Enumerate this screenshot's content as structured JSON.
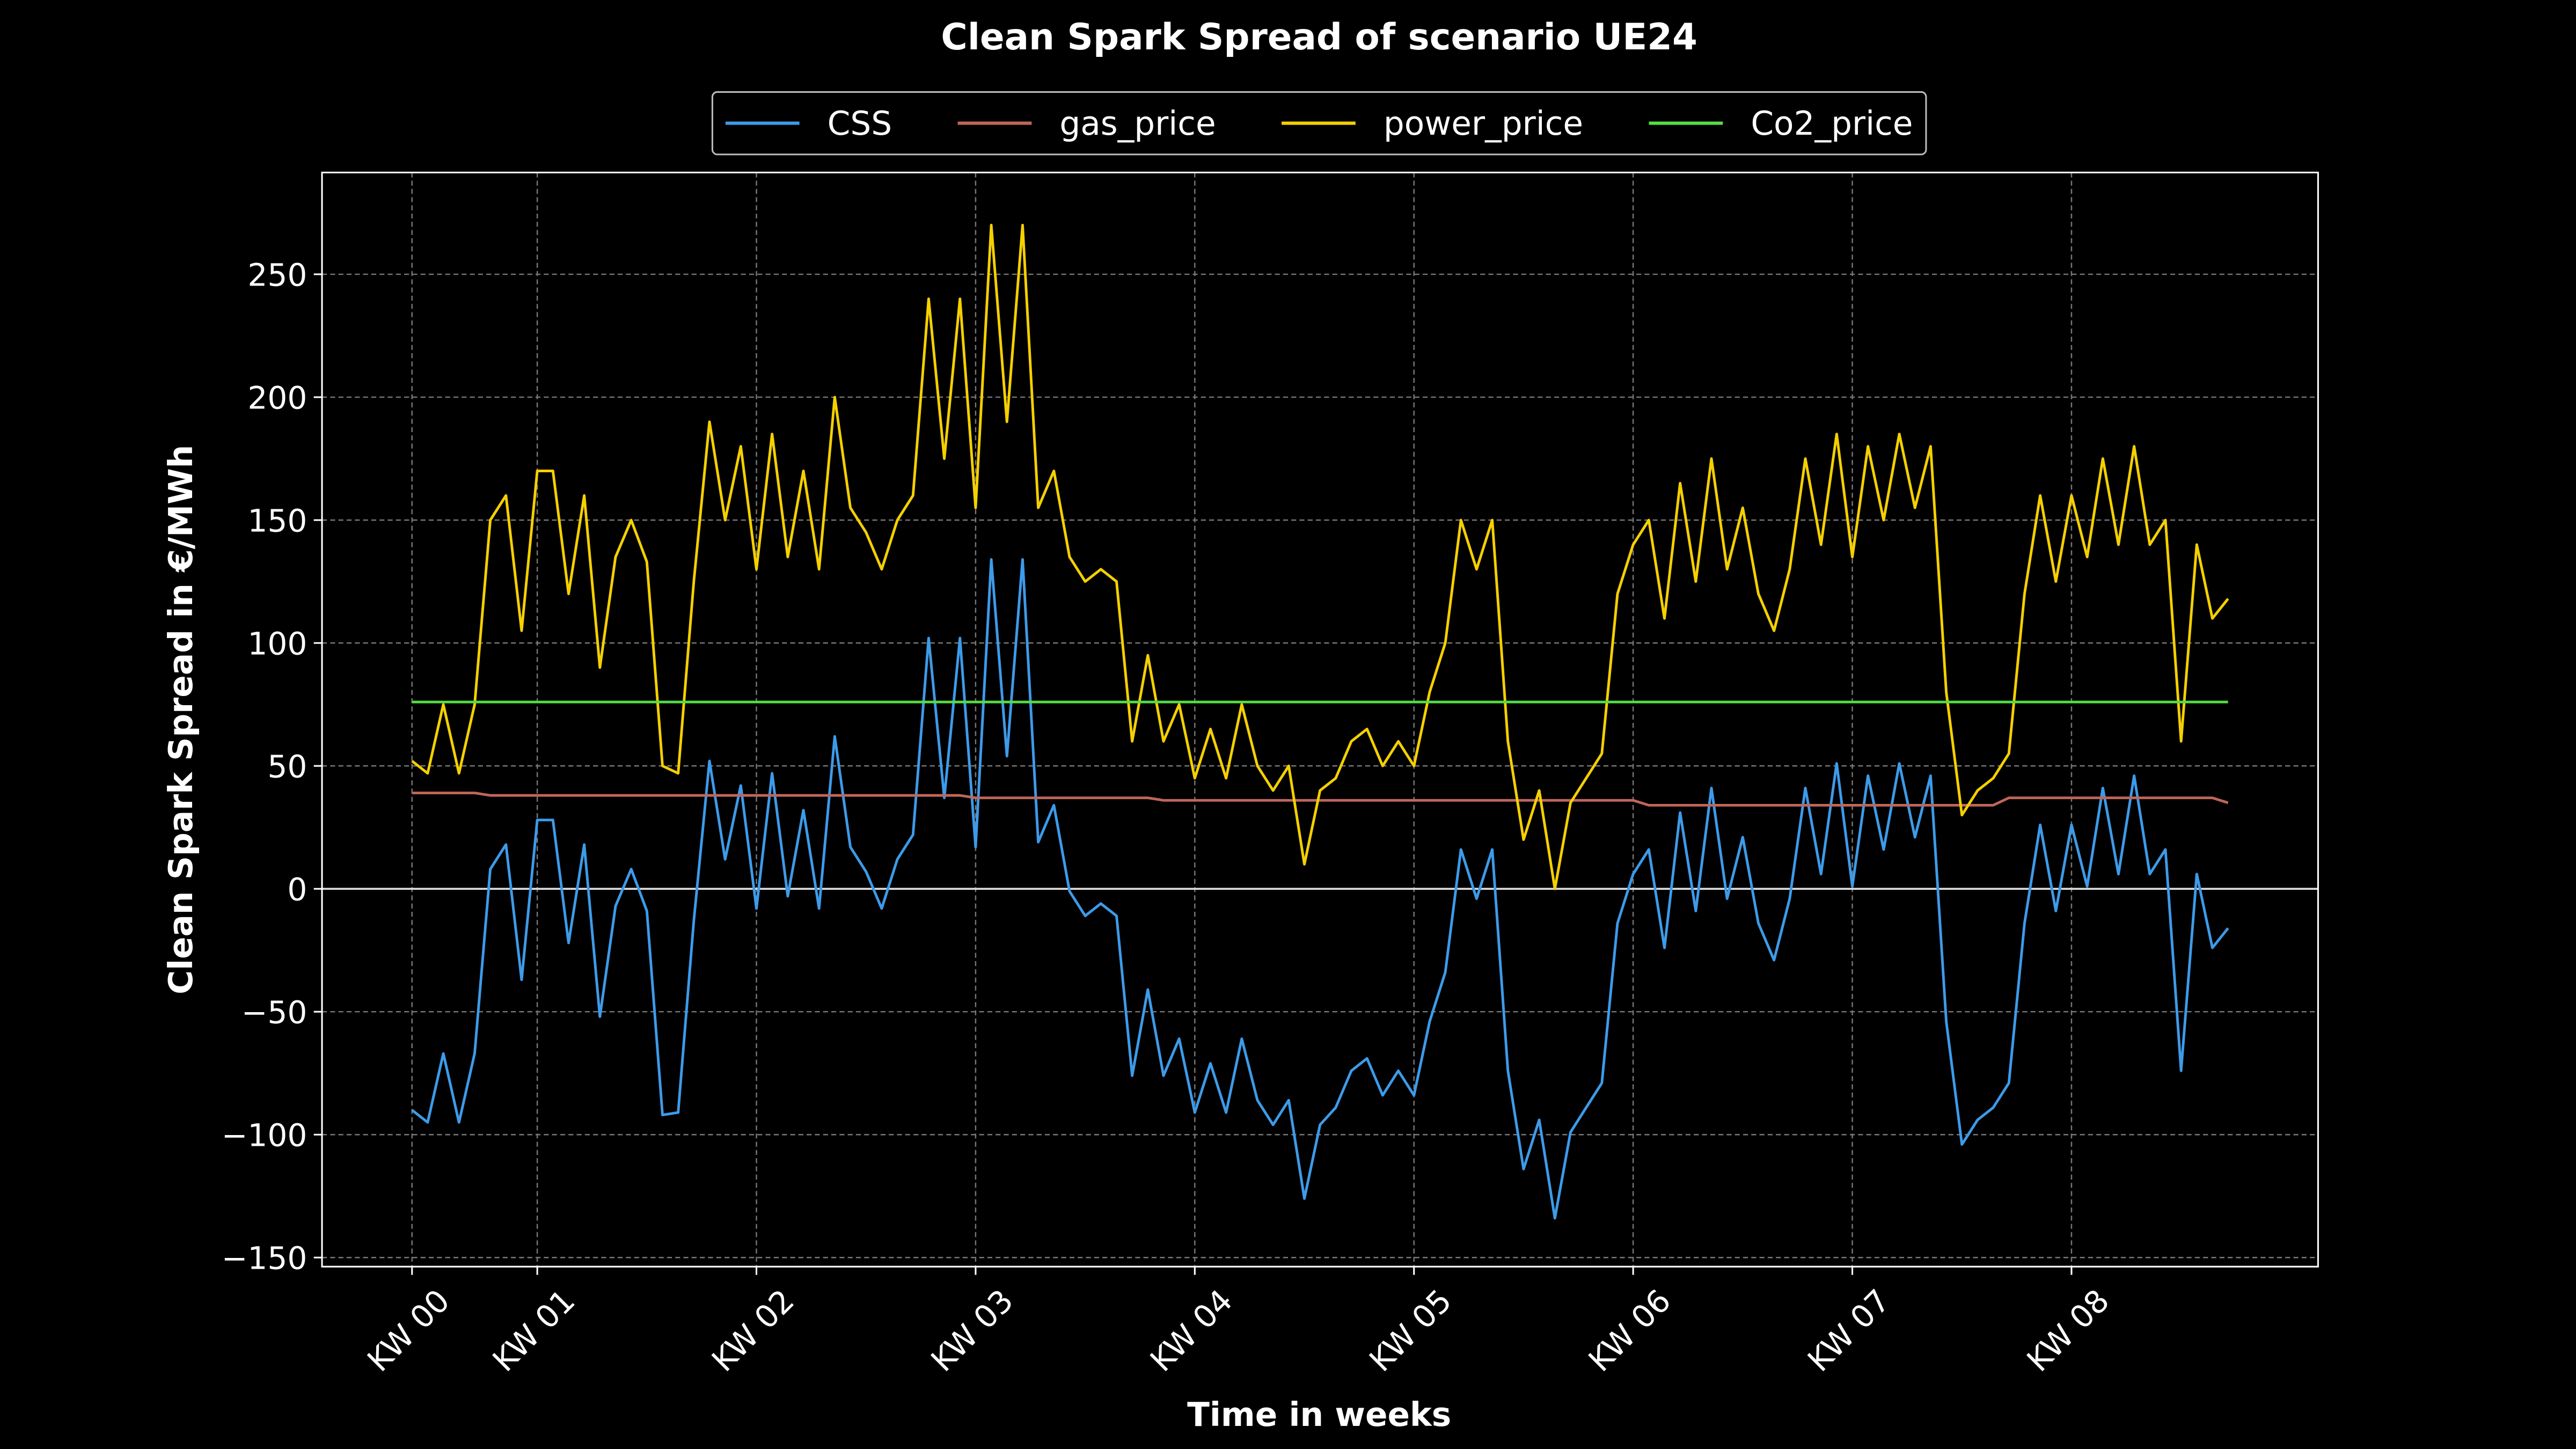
{
  "chart_data": {
    "type": "line",
    "title": "Clean Spark Spread of scenario UE24",
    "x_label": "Time in weeks",
    "y_label": "Clean Spark Spread in €/MWh",
    "legend": "upper center",
    "grid": true,
    "hlines": [
      0
    ],
    "xlim": [
      -69,
      1461
    ],
    "ylim": [
      -153.7,
      291.4
    ],
    "xticks": [
      {
        "value": 0,
        "label": "KW 00"
      },
      {
        "value": 96,
        "label": "KW 01"
      },
      {
        "value": 264,
        "label": "KW 02"
      },
      {
        "value": 432,
        "label": "KW 03"
      },
      {
        "value": 600,
        "label": "KW 04"
      },
      {
        "value": 768,
        "label": "KW 05"
      },
      {
        "value": 936,
        "label": "KW 06"
      },
      {
        "value": 1104,
        "label": "KW 07"
      },
      {
        "value": 1272,
        "label": "KW 08"
      }
    ],
    "yticks": [
      {
        "value": -150,
        "label": "−150"
      },
      {
        "value": -100,
        "label": "−100"
      },
      {
        "value": -50,
        "label": "−50"
      },
      0,
      50,
      100,
      150,
      200,
      250
    ],
    "x": [
      0,
      12,
      24,
      36,
      48,
      60,
      72,
      84,
      96,
      108,
      120,
      132,
      144,
      156,
      168,
      180,
      192,
      204,
      216,
      228,
      240,
      252,
      264,
      276,
      288,
      300,
      312,
      324,
      336,
      348,
      360,
      372,
      384,
      396,
      408,
      420,
      432,
      444,
      456,
      468,
      480,
      492,
      504,
      516,
      528,
      540,
      552,
      564,
      576,
      588,
      600,
      612,
      624,
      636,
      648,
      660,
      672,
      684,
      696,
      708,
      720,
      732,
      744,
      756,
      768,
      780,
      792,
      804,
      816,
      828,
      840,
      852,
      864,
      876,
      888,
      900,
      912,
      924,
      936,
      948,
      960,
      972,
      984,
      996,
      1008,
      1020,
      1032,
      1044,
      1056,
      1068,
      1080,
      1092,
      1104,
      1116,
      1128,
      1140,
      1152,
      1164,
      1176,
      1188,
      1200,
      1212,
      1224,
      1236,
      1248,
      1260,
      1272,
      1284,
      1296,
      1308,
      1320,
      1332,
      1344,
      1356,
      1368,
      1380,
      1392
    ],
    "series": [
      {
        "name": "CSS",
        "color": "#3d9be9",
        "values": [
          -90,
          -95,
          -67,
          -95,
          -67,
          8,
          18,
          -37,
          28,
          28,
          -22,
          18,
          -52,
          -7,
          8,
          -9,
          -92,
          -91,
          -13,
          52,
          12,
          42,
          -8,
          47,
          -3,
          32,
          -8,
          62,
          17,
          7,
          -8,
          12,
          22,
          102,
          37,
          102,
          17,
          134,
          54,
          134,
          19,
          34,
          -1,
          -11,
          -6,
          -11,
          -76,
          -41,
          -76,
          -61,
          -91,
          -71,
          -91,
          -61,
          -86,
          -96,
          -86,
          -126,
          -96,
          -89,
          -74,
          -69,
          -84,
          -74,
          -84,
          -54,
          -34,
          16,
          -4,
          16,
          -74,
          -114,
          -94,
          -134,
          -99,
          -89,
          -79,
          -14,
          6,
          16,
          -24,
          31,
          -9,
          41,
          -4,
          21,
          -14,
          -29,
          -4,
          41,
          6,
          51,
          1,
          46,
          16,
          51,
          21,
          46,
          -54,
          -104,
          -94,
          -89,
          -79,
          -14,
          26,
          -9,
          26,
          1,
          41,
          6,
          46,
          6,
          16,
          -74,
          6,
          -24,
          -16
        ]
      },
      {
        "name": "gas_price",
        "color": "#c0665a",
        "values": [
          39,
          39,
          39,
          39,
          39,
          38,
          38,
          38,
          38,
          38,
          38,
          38,
          38,
          38,
          38,
          38,
          38,
          38,
          38,
          38,
          38,
          38,
          38,
          38,
          38,
          38,
          38,
          38,
          38,
          38,
          38,
          38,
          38,
          38,
          38,
          38,
          37,
          37,
          37,
          37,
          37,
          37,
          37,
          37,
          37,
          37,
          37,
          37,
          36,
          36,
          36,
          36,
          36,
          36,
          36,
          36,
          36,
          36,
          36,
          36,
          36,
          36,
          36,
          36,
          36,
          36,
          36,
          36,
          36,
          36,
          36,
          36,
          36,
          36,
          36,
          36,
          36,
          36,
          36,
          34,
          34,
          34,
          34,
          34,
          34,
          34,
          34,
          34,
          34,
          34,
          34,
          34,
          34,
          34,
          34,
          34,
          34,
          34,
          34,
          34,
          34,
          34,
          37,
          37,
          37,
          37,
          37,
          37,
          37,
          37,
          37,
          37,
          37,
          37,
          37,
          37,
          35
        ]
      },
      {
        "name": "power_price",
        "color": "#f5d000",
        "values": [
          52,
          47,
          75,
          47,
          75,
          150,
          160,
          105,
          170,
          170,
          120,
          160,
          90,
          135,
          150,
          133,
          50,
          47,
          125,
          190,
          150,
          180,
          130,
          185,
          135,
          170,
          130,
          200,
          155,
          145,
          130,
          150,
          160,
          240,
          175,
          240,
          155,
          270,
          190,
          270,
          155,
          170,
          135,
          125,
          130,
          125,
          60,
          95,
          60,
          75,
          45,
          65,
          45,
          75,
          50,
          40,
          50,
          10,
          40,
          45,
          60,
          65,
          50,
          60,
          50,
          80,
          100,
          150,
          130,
          150,
          60,
          20,
          40,
          0,
          35,
          45,
          55,
          120,
          140,
          150,
          110,
          165,
          125,
          175,
          130,
          155,
          120,
          105,
          130,
          175,
          140,
          185,
          135,
          180,
          150,
          185,
          155,
          180,
          80,
          30,
          40,
          45,
          55,
          120,
          160,
          125,
          160,
          135,
          175,
          140,
          180,
          140,
          150,
          60,
          140,
          110,
          118
        ]
      },
      {
        "name": "Co2_price",
        "color": "#55dd44",
        "values": [
          76,
          76,
          76,
          76,
          76,
          76,
          76,
          76,
          76,
          76,
          76,
          76,
          76,
          76,
          76,
          76,
          76,
          76,
          76,
          76,
          76,
          76,
          76,
          76,
          76,
          76,
          76,
          76,
          76,
          76,
          76,
          76,
          76,
          76,
          76,
          76,
          76,
          76,
          76,
          76,
          76,
          76,
          76,
          76,
          76,
          76,
          76,
          76,
          76,
          76,
          76,
          76,
          76,
          76,
          76,
          76,
          76,
          76,
          76,
          76,
          76,
          76,
          76,
          76,
          76,
          76,
          76,
          76,
          76,
          76,
          76,
          76,
          76,
          76,
          76,
          76,
          76,
          76,
          76,
          76,
          76,
          76,
          76,
          76,
          76,
          76,
          76,
          76,
          76,
          76,
          76,
          76,
          76,
          76,
          76,
          76,
          76,
          76,
          76,
          76,
          76,
          76,
          76,
          76,
          76,
          76,
          76,
          76,
          76,
          76,
          76,
          76,
          76,
          76,
          76,
          76,
          76
        ]
      }
    ]
  }
}
